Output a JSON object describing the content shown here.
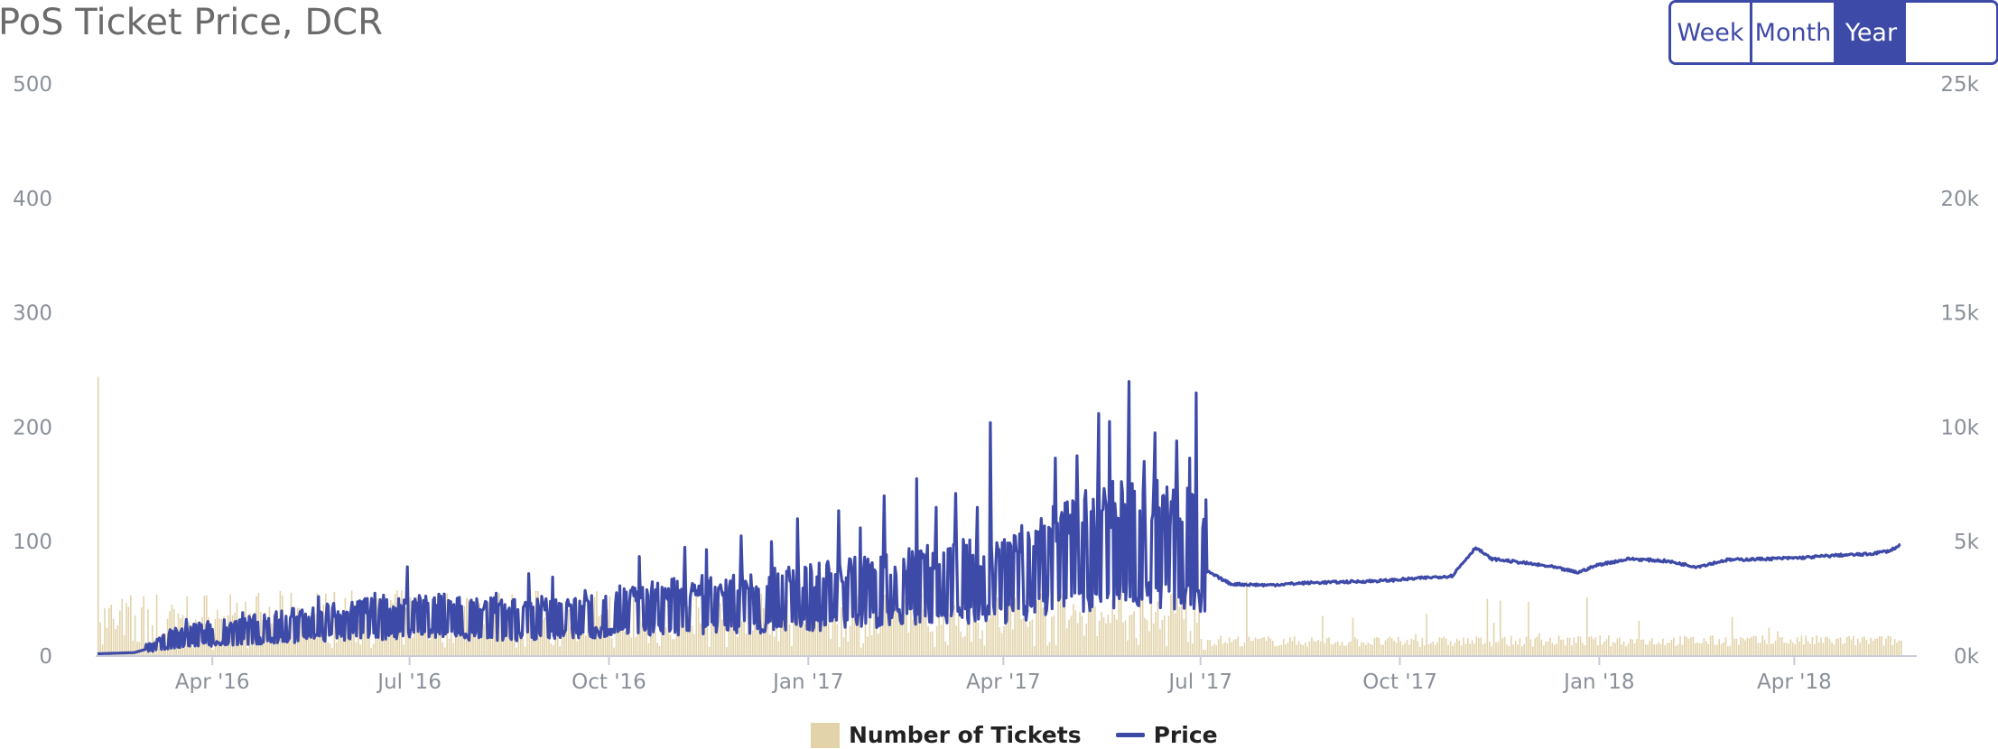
{
  "header": {
    "title": "PoS Ticket Price, DCR"
  },
  "range_buttons": [
    {
      "label": "Week",
      "active": false
    },
    {
      "label": "Month",
      "active": false
    },
    {
      "label": "Year",
      "active": true
    }
  ],
  "colors": {
    "price": "#3e4aa8",
    "tickets": "#e2d3aa",
    "axis": "#c9ccd6",
    "button": "#3e4aa8"
  },
  "chart_data": {
    "type": "bar+line",
    "title": "PoS Ticket Price, DCR",
    "x_range": [
      "2016-02-08",
      "2018-05-20"
    ],
    "x_ticks": [
      {
        "label": "Apr '16",
        "date": "2016-04-01"
      },
      {
        "label": "Jul '16",
        "date": "2016-07-01"
      },
      {
        "label": "Oct '16",
        "date": "2016-10-01"
      },
      {
        "label": "Jan '17",
        "date": "2017-01-01"
      },
      {
        "label": "Apr '17",
        "date": "2017-04-01"
      },
      {
        "label": "Jul '17",
        "date": "2017-07-01"
      },
      {
        "label": "Oct '17",
        "date": "2017-10-01"
      },
      {
        "label": "Jan '18",
        "date": "2018-01-01"
      },
      {
        "label": "Apr '18",
        "date": "2018-04-01"
      }
    ],
    "y_left": {
      "min": 0,
      "max": 500,
      "ticks": [
        "0",
        "100",
        "200",
        "300",
        "400",
        "500"
      ]
    },
    "y_right": {
      "min": 0,
      "max": 25000,
      "ticks": [
        "0k",
        "5k",
        "10k",
        "15k",
        "20k",
        "25k"
      ]
    },
    "grid": false,
    "legend_position": "bottom",
    "series": [
      {
        "name": "Price",
        "type": "line",
        "axis": "left",
        "points": [
          [
            "2016-02-08",
            2
          ],
          [
            "2016-02-25",
            3
          ],
          [
            "2016-03-05",
            8
          ],
          [
            "2016-03-15",
            14
          ],
          [
            "2016-04-01",
            17
          ],
          [
            "2016-04-20",
            20
          ],
          [
            "2016-05-10",
            23
          ],
          [
            "2016-06-01",
            26
          ],
          [
            "2016-06-20",
            29
          ],
          [
            "2016-07-10",
            30
          ],
          [
            "2016-08-01",
            28
          ],
          [
            "2016-08-20",
            27
          ],
          [
            "2016-09-10",
            30
          ],
          [
            "2016-10-01",
            33
          ],
          [
            "2016-10-20",
            36
          ],
          [
            "2016-11-10",
            38
          ],
          [
            "2016-12-01",
            40
          ],
          [
            "2016-12-20",
            42
          ],
          [
            "2017-01-10",
            45
          ],
          [
            "2017-02-01",
            50
          ],
          [
            "2017-02-20",
            55
          ],
          [
            "2017-03-10",
            58
          ],
          [
            "2017-04-01",
            55
          ],
          [
            "2017-04-20",
            70
          ],
          [
            "2017-05-10",
            80
          ],
          [
            "2017-06-01",
            85
          ],
          [
            "2017-06-20",
            82
          ],
          [
            "2017-06-30",
            78
          ],
          [
            "2017-07-05",
            73
          ],
          [
            "2017-07-15",
            63
          ],
          [
            "2017-08-01",
            62
          ],
          [
            "2017-08-20",
            64
          ],
          [
            "2017-09-10",
            65
          ],
          [
            "2017-09-25",
            66
          ],
          [
            "2017-10-10",
            68
          ],
          [
            "2017-10-25",
            70
          ],
          [
            "2017-11-05",
            95
          ],
          [
            "2017-11-12",
            85
          ],
          [
            "2017-11-25",
            82
          ],
          [
            "2017-12-10",
            78
          ],
          [
            "2017-12-22",
            73
          ],
          [
            "2018-01-01",
            80
          ],
          [
            "2018-01-15",
            85
          ],
          [
            "2018-02-01",
            83
          ],
          [
            "2018-02-15",
            78
          ],
          [
            "2018-03-01",
            84
          ],
          [
            "2018-03-20",
            85
          ],
          [
            "2018-04-05",
            86
          ],
          [
            "2018-04-20",
            88
          ],
          [
            "2018-05-05",
            89
          ],
          [
            "2018-05-15",
            92
          ],
          [
            "2018-05-20",
            97
          ]
        ],
        "spikes": [
          [
            "2016-03-20",
            32
          ],
          [
            "2016-04-15",
            38
          ],
          [
            "2016-05-20",
            52
          ],
          [
            "2016-06-15",
            55
          ],
          [
            "2016-06-30",
            78
          ],
          [
            "2016-08-10",
            55
          ],
          [
            "2016-08-25",
            72
          ],
          [
            "2016-09-05",
            69
          ],
          [
            "2016-10-15",
            87
          ],
          [
            "2016-11-05",
            95
          ],
          [
            "2016-11-15",
            93
          ],
          [
            "2016-12-01",
            105
          ],
          [
            "2016-12-15",
            100
          ],
          [
            "2016-12-27",
            120
          ],
          [
            "2017-01-15",
            127
          ],
          [
            "2017-01-25",
            112
          ],
          [
            "2017-02-05",
            140
          ],
          [
            "2017-02-20",
            155
          ],
          [
            "2017-03-01",
            130
          ],
          [
            "2017-03-10",
            142
          ],
          [
            "2017-03-20",
            130
          ],
          [
            "2017-03-26",
            204
          ],
          [
            "2017-04-10",
            76
          ],
          [
            "2017-04-25",
            173
          ],
          [
            "2017-05-05",
            175
          ],
          [
            "2017-05-15",
            212
          ],
          [
            "2017-05-20",
            205
          ],
          [
            "2017-05-29",
            240
          ],
          [
            "2017-06-05",
            170
          ],
          [
            "2017-06-10",
            195
          ],
          [
            "2017-06-20",
            188
          ],
          [
            "2017-06-26",
            173
          ],
          [
            "2017-06-29",
            230
          ]
        ]
      },
      {
        "name": "Number of Tickets",
        "type": "bar",
        "axis": "right",
        "first_day_value": 12200,
        "typical": [
          [
            "2016-03-01",
            1500
          ],
          [
            "2016-06-01",
            2300
          ],
          [
            "2016-09-01",
            2100
          ],
          [
            "2016-12-01",
            2300
          ],
          [
            "2017-03-01",
            2500
          ],
          [
            "2017-06-01",
            2600
          ],
          [
            "2017-07-05",
            700
          ],
          [
            "2017-10-01",
            650
          ],
          [
            "2018-01-01",
            700
          ],
          [
            "2018-05-20",
            700
          ]
        ],
        "peaks": [
          [
            "2016-04-01",
            2800
          ],
          [
            "2016-06-01",
            2900
          ],
          [
            "2016-09-01",
            2900
          ],
          [
            "2016-12-01",
            2800
          ],
          [
            "2017-03-01",
            2900
          ],
          [
            "2017-04-15",
            3200
          ],
          [
            "2017-06-15",
            3000
          ],
          [
            "2017-11-05",
            1900
          ],
          [
            "2017-12-20",
            2200
          ],
          [
            "2018-03-15",
            1300
          ]
        ]
      }
    ]
  },
  "legend": [
    {
      "label": "Number of Tickets",
      "kind": "box"
    },
    {
      "label": "Price",
      "kind": "line"
    }
  ]
}
